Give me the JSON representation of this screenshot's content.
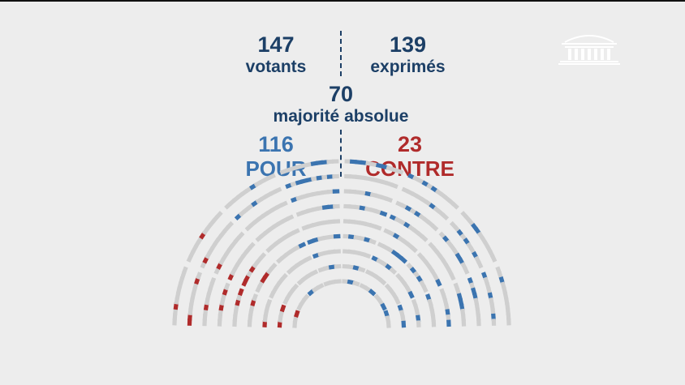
{
  "stats": {
    "votants": {
      "value": "147",
      "label": "votants"
    },
    "exprimes": {
      "value": "139",
      "label": "exprimés"
    },
    "majorite": {
      "value": "70",
      "label": "majorité absolue"
    },
    "pour": {
      "value": "116",
      "label": "POUR"
    },
    "contre": {
      "value": "23",
      "label": "CONTRE"
    }
  },
  "colors": {
    "background": "#ededed",
    "text_navy": "#1c3f66",
    "pour": "#3b74b0",
    "contre": "#b02b2b",
    "empty_seat": "#cfcfcf",
    "seat_highlight": "#ffffff"
  },
  "logo": {
    "icon": "assemblee-nationale-building-icon"
  },
  "hemicycle": {
    "rows": 9,
    "aisles": 7
  }
}
